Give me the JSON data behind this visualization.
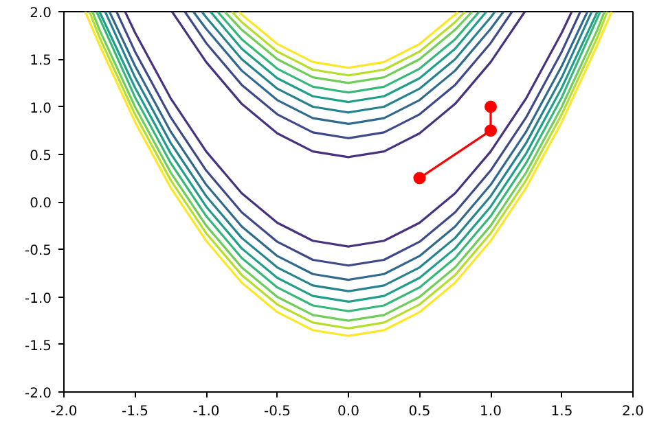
{
  "chart_data": {
    "type": "line",
    "xlim": [
      -2,
      2
    ],
    "ylim": [
      -2,
      2
    ],
    "grid": false,
    "marker": "none",
    "line_style": "solid",
    "xticks": [
      {
        "value": -2,
        "label": "-2.0"
      },
      {
        "value": -1.5,
        "label": "-1.5"
      },
      {
        "value": -1,
        "label": "-1.0"
      },
      {
        "value": -0.5,
        "label": "-0.5"
      },
      {
        "value": 0,
        "label": "0.0"
      },
      {
        "value": 0.5,
        "label": "0.5"
      },
      {
        "value": 1,
        "label": "1.0"
      },
      {
        "value": 1.5,
        "label": "1.5"
      },
      {
        "value": 2,
        "label": "2.0"
      }
    ],
    "yticks": [
      {
        "value": -2,
        "label": "-2.0"
      },
      {
        "value": -1.5,
        "label": "-1.5"
      },
      {
        "value": -1,
        "label": "-1.0"
      },
      {
        "value": -0.5,
        "label": "-0.5"
      },
      {
        "value": 0,
        "label": "0.0"
      },
      {
        "value": 0.5,
        "label": "0.5"
      },
      {
        "value": 1,
        "label": "1.0"
      },
      {
        "value": 1.5,
        "label": "1.5"
      },
      {
        "value": 2,
        "label": "2.0"
      }
    ],
    "series": [
      {
        "color": "#46327e",
        "x": [
          -1.24,
          -1,
          -0.75,
          -0.5,
          -0.25,
          0,
          0.25,
          0.5,
          0.75,
          1,
          1.24
        ],
        "values": [
          2,
          1.47,
          1.03,
          0.72,
          0.53,
          0.47,
          0.53,
          0.72,
          1.03,
          1.47,
          2
        ]
      },
      {
        "color": "#3e4989",
        "x": [
          -1.15,
          -1,
          -0.75,
          -0.5,
          -0.25,
          0,
          0.25,
          0.5,
          0.75,
          1,
          1.15
        ],
        "values": [
          2,
          1.67,
          1.23,
          0.92,
          0.73,
          0.67,
          0.73,
          0.92,
          1.23,
          1.67,
          2
        ]
      },
      {
        "color": "#31688e",
        "x": [
          -1.09,
          -1,
          -0.75,
          -0.5,
          -0.25,
          0,
          0.25,
          0.5,
          0.75,
          1,
          1.09
        ],
        "values": [
          2,
          1.82,
          1.38,
          1.07,
          0.88,
          0.82,
          0.88,
          1.07,
          1.38,
          1.82,
          2
        ]
      },
      {
        "color": "#26828e",
        "x": [
          -1.03,
          -1,
          -0.75,
          -0.5,
          -0.25,
          0,
          0.25,
          0.5,
          0.75,
          1,
          1.03
        ],
        "values": [
          2,
          1.94,
          1.5,
          1.19,
          1.0,
          0.94,
          1.0,
          1.19,
          1.5,
          1.94,
          2
        ]
      },
      {
        "color": "#1f9e89",
        "x": [
          -0.97,
          -0.75,
          -0.5,
          -0.25,
          0,
          0.25,
          0.5,
          0.75,
          0.97
        ],
        "values": [
          2,
          1.61,
          1.3,
          1.11,
          1.05,
          1.11,
          1.3,
          1.61,
          2
        ]
      },
      {
        "color": "#35b779",
        "x": [
          -0.92,
          -0.75,
          -0.5,
          -0.25,
          0,
          0.25,
          0.5,
          0.75,
          0.92
        ],
        "values": [
          2,
          1.71,
          1.4,
          1.21,
          1.15,
          1.21,
          1.4,
          1.71,
          2
        ]
      },
      {
        "color": "#6ece58",
        "x": [
          -0.87,
          -0.75,
          -0.5,
          -0.25,
          0,
          0.25,
          0.5,
          0.75,
          0.87
        ],
        "values": [
          2,
          1.81,
          1.5,
          1.31,
          1.25,
          1.31,
          1.5,
          1.81,
          2
        ]
      },
      {
        "color": "#b5de2b",
        "x": [
          -0.82,
          -0.75,
          -0.5,
          -0.25,
          0,
          0.25,
          0.5,
          0.75,
          0.82
        ],
        "values": [
          2,
          1.89,
          1.58,
          1.39,
          1.33,
          1.39,
          1.58,
          1.89,
          2
        ]
      },
      {
        "color": "#fde725",
        "x": [
          -0.77,
          -0.75,
          -0.5,
          -0.25,
          0,
          0.25,
          0.5,
          0.75,
          0.77
        ],
        "values": [
          2,
          1.97,
          1.66,
          1.47,
          1.41,
          1.47,
          1.66,
          1.97,
          2
        ]
      },
      {
        "color": "#46327e",
        "x": [
          -1.57,
          -1.5,
          -1.25,
          -1,
          -0.75,
          -0.5,
          -0.25,
          0,
          0.25,
          0.5,
          0.75,
          1,
          1.25,
          1.5,
          1.57
        ],
        "values": [
          2,
          1.78,
          1.09,
          0.53,
          0.09,
          -0.22,
          -0.41,
          -0.47,
          -0.41,
          -0.22,
          0.09,
          0.53,
          1.09,
          1.78,
          2
        ]
      },
      {
        "color": "#3e4989",
        "x": [
          -1.63,
          -1.5,
          -1.25,
          -1,
          -0.75,
          -0.5,
          -0.25,
          0,
          0.25,
          0.5,
          0.75,
          1,
          1.25,
          1.5,
          1.63
        ],
        "values": [
          2,
          1.58,
          0.89,
          0.33,
          -0.11,
          -0.42,
          -0.61,
          -0.67,
          -0.61,
          -0.42,
          -0.11,
          0.33,
          0.89,
          1.58,
          2
        ]
      },
      {
        "color": "#31688e",
        "x": [
          -1.68,
          -1.5,
          -1.25,
          -1,
          -0.75,
          -0.5,
          -0.25,
          0,
          0.25,
          0.5,
          0.75,
          1,
          1.25,
          1.5,
          1.68
        ],
        "values": [
          2,
          1.43,
          0.74,
          0.18,
          -0.26,
          -0.57,
          -0.76,
          -0.82,
          -0.76,
          -0.57,
          -0.26,
          0.18,
          0.74,
          1.43,
          2
        ]
      },
      {
        "color": "#26828e",
        "x": [
          -1.71,
          -1.5,
          -1.25,
          -1,
          -0.75,
          -0.5,
          -0.25,
          0,
          0.25,
          0.5,
          0.75,
          1,
          1.25,
          1.5,
          1.71
        ],
        "values": [
          2,
          1.31,
          0.62,
          0.06,
          -0.38,
          -0.69,
          -0.88,
          -0.94,
          -0.88,
          -0.69,
          -0.38,
          0.06,
          0.62,
          1.31,
          2
        ]
      },
      {
        "color": "#1f9e89",
        "x": [
          -1.75,
          -1.5,
          -1.25,
          -1,
          -0.75,
          -0.5,
          -0.25,
          0,
          0.25,
          0.5,
          0.75,
          1,
          1.25,
          1.5,
          1.75
        ],
        "values": [
          2,
          1.2,
          0.51,
          -0.05,
          -0.49,
          -0.8,
          -0.99,
          -1.05,
          -0.99,
          -0.8,
          -0.49,
          -0.05,
          0.51,
          1.2,
          2
        ]
      },
      {
        "color": "#35b779",
        "x": [
          -1.77,
          -1.5,
          -1.25,
          -1,
          -0.75,
          -0.5,
          -0.25,
          0,
          0.25,
          0.5,
          0.75,
          1,
          1.25,
          1.5,
          1.77
        ],
        "values": [
          2,
          1.1,
          0.41,
          -0.15,
          -0.59,
          -0.9,
          -1.09,
          -1.15,
          -1.09,
          -0.9,
          -0.59,
          -0.15,
          0.41,
          1.1,
          2
        ]
      },
      {
        "color": "#6ece58",
        "x": [
          -1.8,
          -1.75,
          -1.5,
          -1.25,
          -1,
          -0.75,
          -0.5,
          -0.25,
          0,
          0.25,
          0.5,
          0.75,
          1,
          1.25,
          1.5,
          1.75,
          1.8
        ],
        "values": [
          2,
          1.81,
          1.0,
          0.31,
          -0.25,
          -0.69,
          -1.0,
          -1.19,
          -1.25,
          -1.19,
          -1.0,
          -0.69,
          -0.25,
          0.31,
          1.0,
          1.81,
          2
        ]
      },
      {
        "color": "#b5de2b",
        "x": [
          -1.82,
          -1.75,
          -1.5,
          -1.25,
          -1,
          -0.75,
          -0.5,
          -0.25,
          0,
          0.25,
          0.5,
          0.75,
          1,
          1.25,
          1.5,
          1.75,
          1.82
        ],
        "values": [
          2,
          1.73,
          0.92,
          0.23,
          -0.33,
          -0.77,
          -1.08,
          -1.27,
          -1.33,
          -1.27,
          -1.08,
          -0.77,
          -0.33,
          0.23,
          0.92,
          1.73,
          2
        ]
      },
      {
        "color": "#fde725",
        "x": [
          -1.85,
          -1.75,
          -1.5,
          -1.25,
          -1,
          -0.75,
          -0.5,
          -0.25,
          0,
          0.25,
          0.5,
          0.75,
          1,
          1.25,
          1.5,
          1.75,
          1.85
        ],
        "values": [
          2,
          1.65,
          0.84,
          0.15,
          -0.41,
          -0.85,
          -1.16,
          -1.35,
          -1.41,
          -1.35,
          -1.16,
          -0.85,
          -0.41,
          0.15,
          0.84,
          1.65,
          2
        ]
      },
      {
        "color": "#ff0000",
        "marker": "circle",
        "x": [
          0.5,
          1,
          1
        ],
        "values": [
          0.25,
          0.75,
          1
        ]
      }
    ]
  }
}
